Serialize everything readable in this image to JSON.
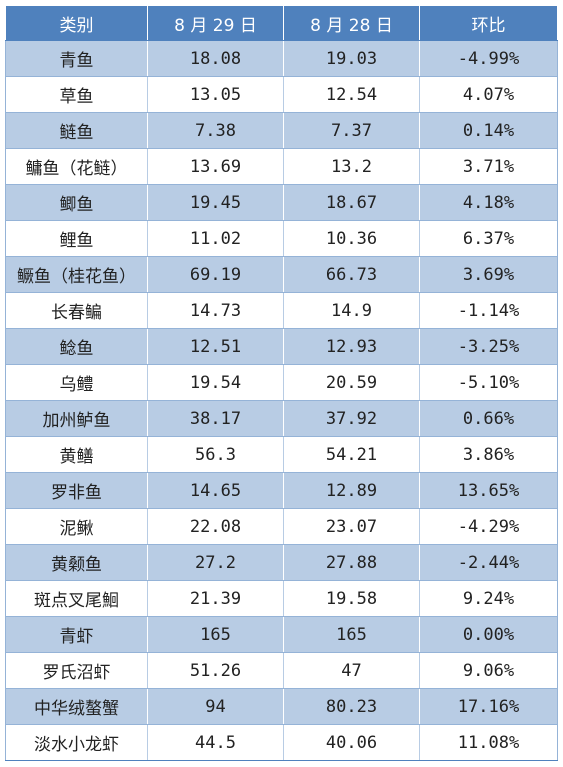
{
  "table": {
    "headers": {
      "category": "类别",
      "aug29": "8 月 29 日",
      "aug28": "8 月 28 日",
      "change": "环比"
    },
    "rows": [
      {
        "name": "青鱼",
        "aug29": "18.08",
        "aug28": "19.03",
        "change": "-4.99%"
      },
      {
        "name": "草鱼",
        "aug29": "13.05",
        "aug28": "12.54",
        "change": "4.07%"
      },
      {
        "name": "鲢鱼",
        "aug29": "7.38",
        "aug28": "7.37",
        "change": "0.14%"
      },
      {
        "name": "鳙鱼（花鲢）",
        "aug29": "13.69",
        "aug28": "13.2",
        "change": "3.71%"
      },
      {
        "name": "鲫鱼",
        "aug29": "19.45",
        "aug28": "18.67",
        "change": "4.18%"
      },
      {
        "name": "鲤鱼",
        "aug29": "11.02",
        "aug28": "10.36",
        "change": "6.37%"
      },
      {
        "name": "鳜鱼（桂花鱼）",
        "aug29": "69.19",
        "aug28": "66.73",
        "change": "3.69%"
      },
      {
        "name": "长春鳊",
        "aug29": "14.73",
        "aug28": "14.9",
        "change": "-1.14%"
      },
      {
        "name": "鲶鱼",
        "aug29": "12.51",
        "aug28": "12.93",
        "change": "-3.25%"
      },
      {
        "name": "乌鳢",
        "aug29": "19.54",
        "aug28": "20.59",
        "change": "-5.10%"
      },
      {
        "name": "加州鲈鱼",
        "aug29": "38.17",
        "aug28": "37.92",
        "change": "0.66%"
      },
      {
        "name": "黄鳝",
        "aug29": "56.3",
        "aug28": "54.21",
        "change": "3.86%"
      },
      {
        "name": "罗非鱼",
        "aug29": "14.65",
        "aug28": "12.89",
        "change": "13.65%"
      },
      {
        "name": "泥鳅",
        "aug29": "22.08",
        "aug28": "23.07",
        "change": "-4.29%"
      },
      {
        "name": "黄颡鱼",
        "aug29": "27.2",
        "aug28": "27.88",
        "change": "-2.44%"
      },
      {
        "name": "斑点叉尾鮰",
        "aug29": "21.39",
        "aug28": "19.58",
        "change": "9.24%"
      },
      {
        "name": "青虾",
        "aug29": "165",
        "aug28": "165",
        "change": "0.00%"
      },
      {
        "name": "罗氏沼虾",
        "aug29": "51.26",
        "aug28": "47",
        "change": "9.06%"
      },
      {
        "name": "中华绒螯蟹",
        "aug29": "94",
        "aug28": "80.23",
        "change": "17.16%"
      },
      {
        "name": "淡水小龙虾",
        "aug29": "44.5",
        "aug28": "40.06",
        "change": "11.08%"
      }
    ]
  },
  "colors": {
    "header_bg": "#4f81bd",
    "band_bg": "#b8cce4",
    "row_border": "#95b3d7"
  }
}
